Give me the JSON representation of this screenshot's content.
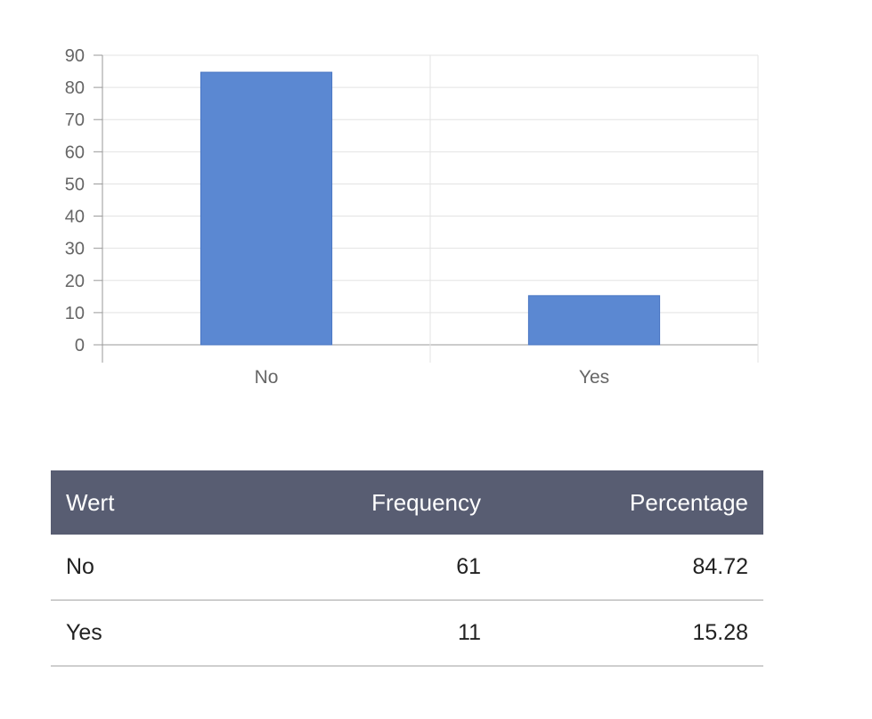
{
  "chart_data": {
    "type": "bar",
    "categories": [
      "No",
      "Yes"
    ],
    "values": [
      84.72,
      15.28
    ],
    "ylim": [
      0,
      90
    ],
    "yticks": [
      0,
      10,
      20,
      30,
      40,
      50,
      60,
      70,
      80,
      90
    ],
    "grid": true,
    "bar_color": "#5b88d2"
  },
  "table": {
    "headers": [
      "Wert",
      "Frequency",
      "Percentage"
    ],
    "rows": [
      [
        "No",
        "61",
        "84.72"
      ],
      [
        "Yes",
        "11",
        "15.28"
      ]
    ],
    "header_color": "#585d72"
  }
}
